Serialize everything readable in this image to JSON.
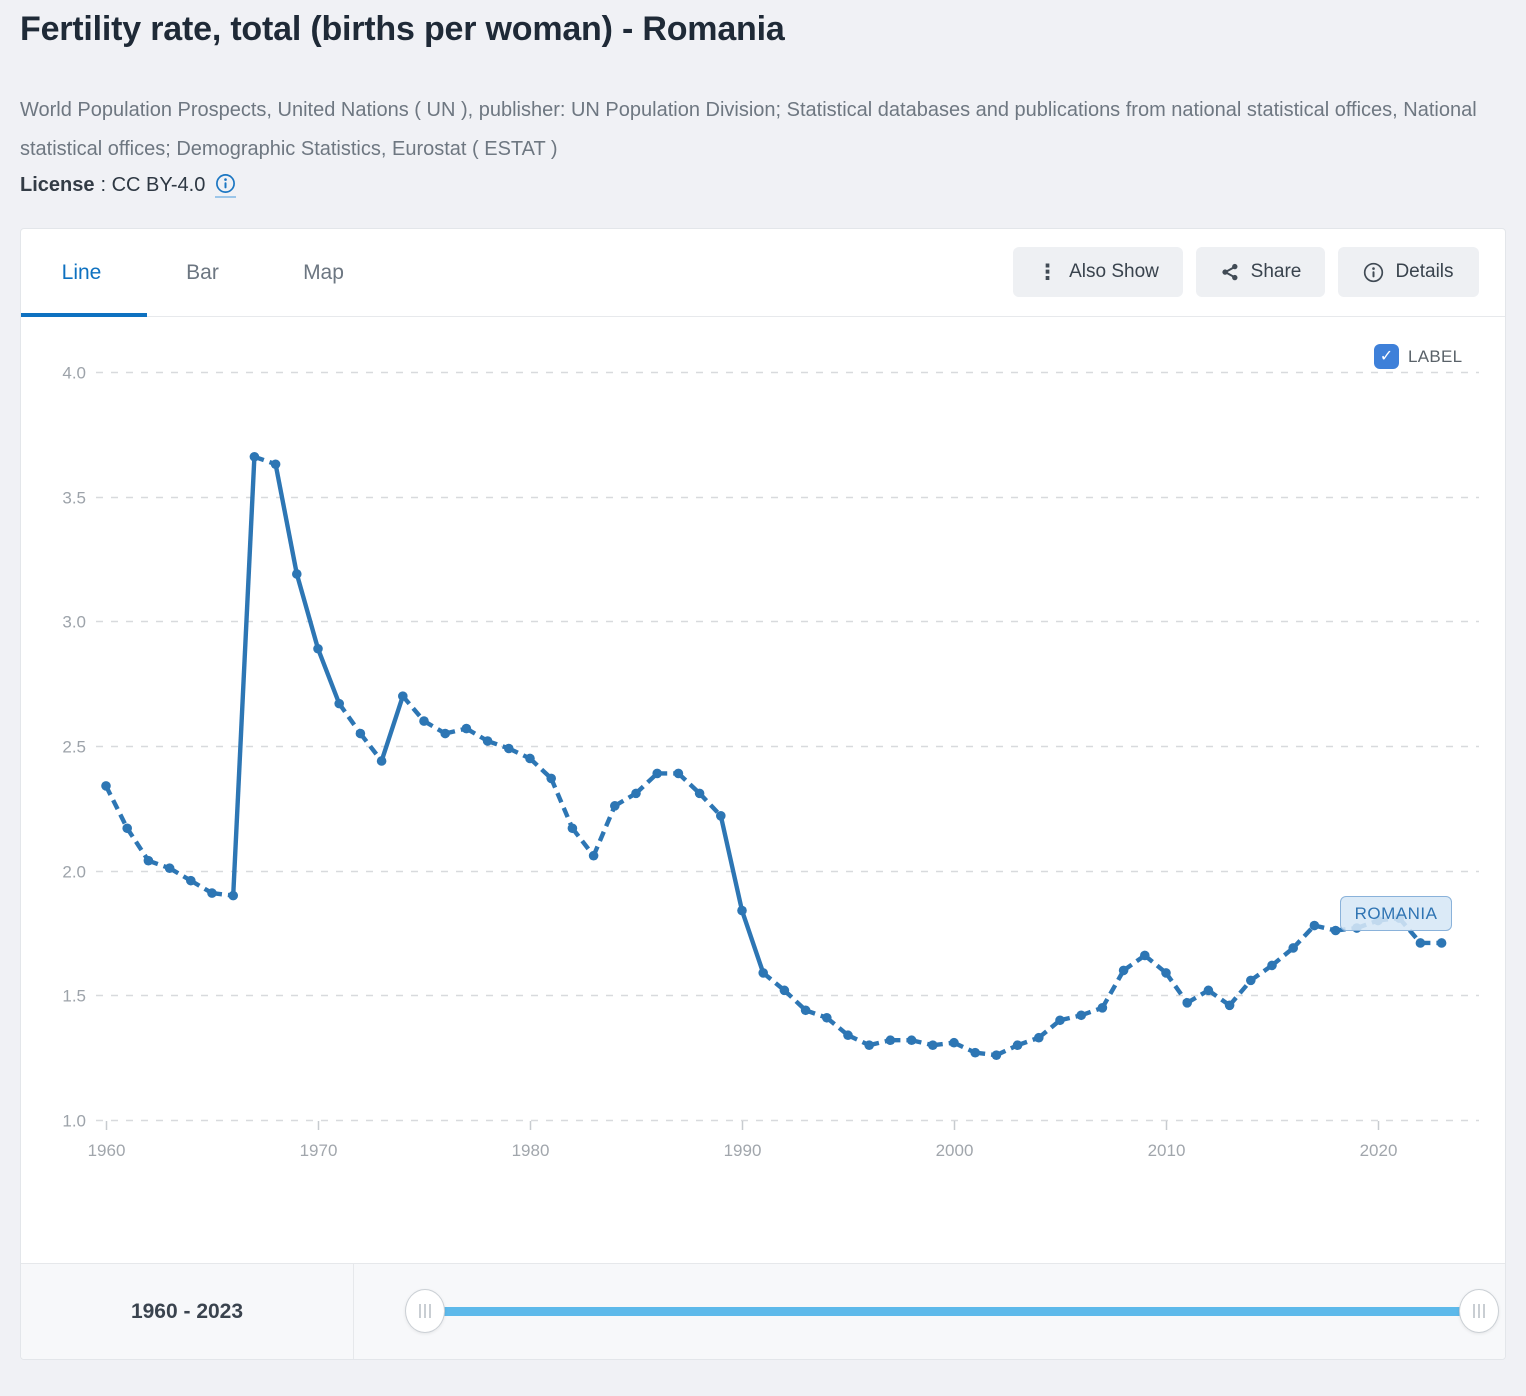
{
  "page": {
    "title": "Fertility rate, total (births per woman) - Romania",
    "source": "World Population Prospects, United Nations ( UN ), publisher: UN Population Division; Statistical databases and publications from national statistical offices, National statistical offices; Demographic Statistics, Eurostat ( ESTAT )",
    "license_label": "License",
    "license_value": ": CC BY-4.0"
  },
  "tabs": [
    {
      "label": "Line",
      "active": true
    },
    {
      "label": "Bar",
      "active": false
    },
    {
      "label": "Map",
      "active": false
    }
  ],
  "toolbar": {
    "also_show": "Also Show",
    "share": "Share",
    "details": "Details"
  },
  "chart": {
    "label_checkbox": "LABEL",
    "label_checked": true,
    "series_label": "ROMANIA"
  },
  "range": {
    "label": "1960 - 2023",
    "start": 1960,
    "end": 2023
  },
  "colors": {
    "line": "#2d76b4",
    "tab_active_blue": "#0e71c0",
    "checkbox_blue": "#3e80d9",
    "slider_blue": "#5db9ea",
    "label_box_bg": "#d6e7f6",
    "label_box_border": "#8ab2da",
    "grid": "#d8dadd",
    "axis_text": "#9da3aa"
  },
  "chart_data": {
    "type": "line",
    "title": "Fertility rate, total (births per woman) - Romania",
    "xlabel": "",
    "ylabel": "",
    "xlim": [
      1960,
      2023
    ],
    "ylim": [
      1.0,
      4.0
    ],
    "x_ticks": [
      1960,
      1970,
      1980,
      1990,
      2000,
      2010,
      2020
    ],
    "y_ticks": [
      4.0,
      3.5,
      3.0,
      2.5,
      2.0,
      1.5,
      1.0
    ],
    "y_tick_labels": [
      "4.0",
      "3.5",
      "3.0",
      "2.5",
      "2.0",
      "1.5",
      "1.0"
    ],
    "grid": true,
    "legend_position": "none",
    "line_style": "dashed with round point markers",
    "series": [
      {
        "name": "Romania",
        "years": [
          1960,
          1961,
          1962,
          1963,
          1964,
          1965,
          1966,
          1967,
          1968,
          1969,
          1970,
          1971,
          1972,
          1973,
          1974,
          1975,
          1976,
          1977,
          1978,
          1979,
          1980,
          1981,
          1982,
          1983,
          1984,
          1985,
          1986,
          1987,
          1988,
          1989,
          1990,
          1991,
          1992,
          1993,
          1994,
          1995,
          1996,
          1997,
          1998,
          1999,
          2000,
          2001,
          2002,
          2003,
          2004,
          2005,
          2006,
          2007,
          2008,
          2009,
          2010,
          2011,
          2012,
          2013,
          2014,
          2015,
          2016,
          2017,
          2018,
          2019,
          2020,
          2021,
          2022,
          2023
        ],
        "values": [
          2.34,
          2.17,
          2.04,
          2.01,
          1.96,
          1.91,
          1.9,
          3.66,
          3.63,
          3.19,
          2.89,
          2.67,
          2.55,
          2.44,
          2.7,
          2.6,
          2.55,
          2.57,
          2.52,
          2.49,
          2.45,
          2.37,
          2.17,
          2.06,
          2.26,
          2.31,
          2.39,
          2.39,
          2.31,
          2.22,
          1.84,
          1.59,
          1.52,
          1.44,
          1.41,
          1.34,
          1.3,
          1.32,
          1.32,
          1.3,
          1.31,
          1.27,
          1.26,
          1.3,
          1.33,
          1.4,
          1.42,
          1.45,
          1.6,
          1.66,
          1.59,
          1.47,
          1.52,
          1.46,
          1.56,
          1.62,
          1.69,
          1.78,
          1.76,
          1.77,
          1.8,
          1.81,
          1.71,
          1.71
        ]
      }
    ]
  }
}
